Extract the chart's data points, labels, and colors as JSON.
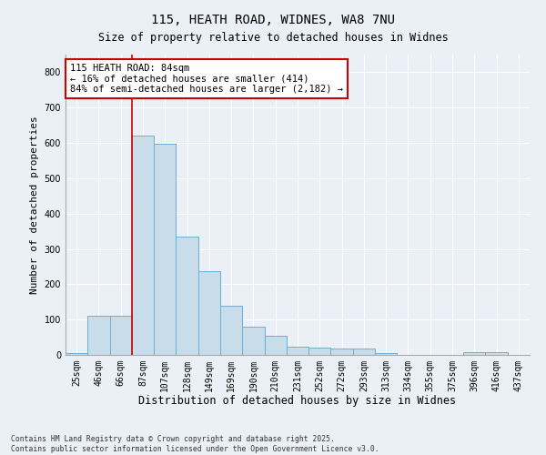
{
  "title1": "115, HEATH ROAD, WIDNES, WA8 7NU",
  "title2": "Size of property relative to detached houses in Widnes",
  "xlabel": "Distribution of detached houses by size in Widnes",
  "ylabel": "Number of detached properties",
  "categories": [
    "25sqm",
    "46sqm",
    "66sqm",
    "87sqm",
    "107sqm",
    "128sqm",
    "149sqm",
    "169sqm",
    "190sqm",
    "210sqm",
    "231sqm",
    "252sqm",
    "272sqm",
    "293sqm",
    "313sqm",
    "334sqm",
    "355sqm",
    "375sqm",
    "396sqm",
    "416sqm",
    "437sqm"
  ],
  "values": [
    5,
    110,
    110,
    620,
    598,
    335,
    238,
    138,
    80,
    53,
    23,
    20,
    17,
    17,
    5,
    0,
    0,
    0,
    7,
    8,
    0
  ],
  "bar_color": "#c9dcea",
  "bar_edge_color": "#6aafd4",
  "red_line_index": 3,
  "annotation_text": "115 HEATH ROAD: 84sqm\n← 16% of detached houses are smaller (414)\n84% of semi-detached houses are larger (2,182) →",
  "annotation_box_color": "#ffffff",
  "annotation_edge_color": "#cc0000",
  "red_line_color": "#cc0000",
  "background_color": "#eaf0f6",
  "plot_bg_color": "#eaf0f6",
  "grid_color": "#ffffff",
  "ylim": [
    0,
    850
  ],
  "yticks": [
    0,
    100,
    200,
    300,
    400,
    500,
    600,
    700,
    800
  ],
  "footer_text": "Contains HM Land Registry data © Crown copyright and database right 2025.\nContains public sector information licensed under the Open Government Licence v3.0."
}
